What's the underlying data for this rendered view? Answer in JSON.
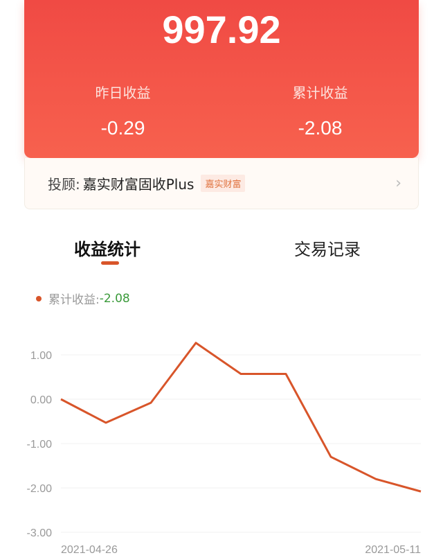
{
  "summary": {
    "total": "997.92",
    "yesterday_label": "昨日收益",
    "yesterday_value": "-0.29",
    "cumulative_label": "累计收益",
    "cumulative_value": "-2.08"
  },
  "advisor": {
    "prefix": "投顾:",
    "name": "嘉实财富固收Plus",
    "tag": "嘉实财富"
  },
  "tabs": [
    {
      "label": "收益统计",
      "active": true
    },
    {
      "label": "交易记录",
      "active": false
    }
  ],
  "colors": {
    "accent": "#d8552a",
    "header": "#f04a44",
    "positive": "#3a9a3a"
  },
  "chart_data": {
    "type": "line",
    "legend": {
      "label": "累计收益:",
      "value": "-2.08"
    },
    "ylim": [
      -3,
      1
    ],
    "yticks": [
      "1.00",
      "0.00",
      "-1.00",
      "-2.00",
      "-3.00"
    ],
    "xticks": [
      "2021-04-26",
      "2021-05-11"
    ],
    "grid": true,
    "series": [
      {
        "values": [
          0,
          -0.53,
          -0.08,
          1.27,
          0.57,
          0.57,
          -1.3,
          -1.8,
          -2.08
        ]
      }
    ]
  }
}
